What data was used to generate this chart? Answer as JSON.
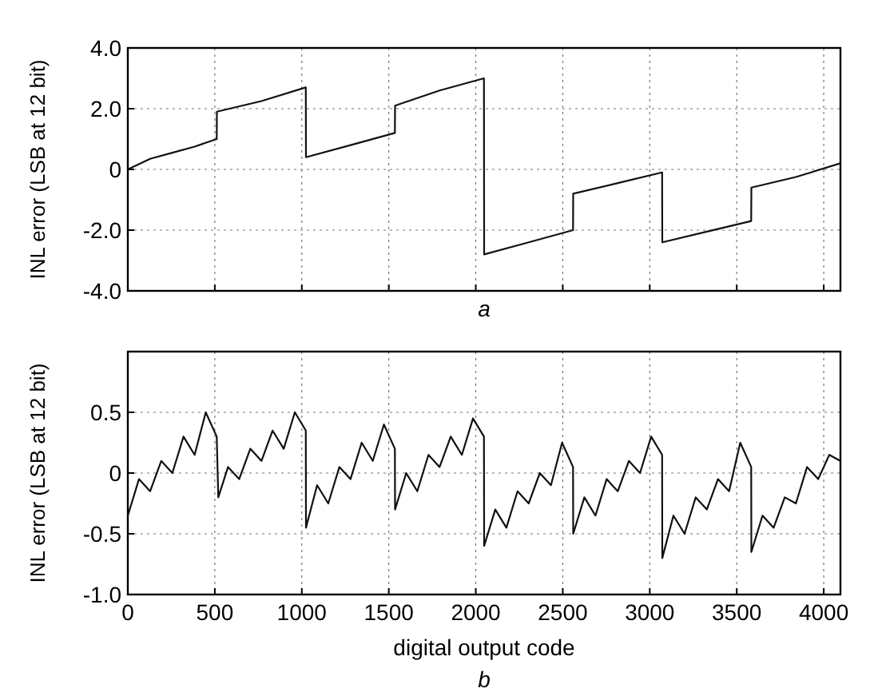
{
  "chart_data": [
    {
      "type": "line",
      "ylabel": "INL error (LSB at 12 bit)",
      "annotations": [
        "a"
      ],
      "x": [
        0,
        128,
        256,
        384,
        511,
        512,
        768,
        1023,
        1024,
        1280,
        1535,
        1536,
        1792,
        2047,
        2048,
        2304,
        2559,
        2560,
        2816,
        3071,
        3072,
        3328,
        3583,
        3584,
        3840,
        4095
      ],
      "series": [
        {
          "color": "#111111",
          "values": [
            0.0,
            0.35,
            0.55,
            0.75,
            1.0,
            1.9,
            2.25,
            2.7,
            0.4,
            0.8,
            1.2,
            2.1,
            2.6,
            3.0,
            -2.8,
            -2.4,
            -2.0,
            -0.8,
            -0.45,
            -0.1,
            -2.4,
            -2.05,
            -1.7,
            -0.6,
            -0.25,
            0.2
          ]
        }
      ],
      "xlim": [
        0,
        4096
      ],
      "xticks": [
        0,
        500,
        1000,
        1500,
        2000,
        2500,
        3000,
        3500,
        4000
      ],
      "ylim": [
        -4,
        4
      ],
      "yticks": [
        {
          "value": -4,
          "label": "-4.0"
        },
        {
          "value": -2,
          "label": "-2.0"
        },
        0,
        {
          "value": 2,
          "label": "2.0"
        },
        {
          "value": 4,
          "label": "4.0"
        }
      ],
      "tick_labels": "y",
      "grid": true,
      "marker": "none",
      "line_style": "solid"
    },
    {
      "type": "line",
      "ylabel": "INL error (LSB at 12 bit)",
      "xlabel": "digital output code",
      "annotations": [
        "b"
      ],
      "x": [
        0,
        64,
        128,
        192,
        256,
        320,
        384,
        448,
        511,
        520,
        576,
        640,
        704,
        768,
        832,
        896,
        960,
        1023,
        1024,
        1088,
        1152,
        1216,
        1280,
        1344,
        1408,
        1472,
        1535,
        1536,
        1600,
        1664,
        1728,
        1792,
        1856,
        1920,
        1984,
        2047,
        2048,
        2112,
        2176,
        2240,
        2304,
        2368,
        2432,
        2496,
        2559,
        2560,
        2624,
        2688,
        2752,
        2816,
        2880,
        2944,
        3008,
        3071,
        3072,
        3136,
        3200,
        3264,
        3328,
        3392,
        3456,
        3520,
        3583,
        3584,
        3648,
        3712,
        3776,
        3840,
        3904,
        3968,
        4032,
        4095
      ],
      "series": [
        {
          "color": "#111111",
          "values": [
            -0.35,
            -0.05,
            -0.15,
            0.1,
            0.0,
            0.3,
            0.15,
            0.5,
            0.3,
            -0.2,
            0.05,
            -0.05,
            0.2,
            0.1,
            0.35,
            0.2,
            0.5,
            0.35,
            -0.45,
            -0.1,
            -0.25,
            0.05,
            -0.05,
            0.25,
            0.1,
            0.4,
            0.2,
            -0.3,
            0.0,
            -0.15,
            0.15,
            0.05,
            0.3,
            0.15,
            0.45,
            0.3,
            -0.6,
            -0.3,
            -0.45,
            -0.15,
            -0.25,
            0.0,
            -0.1,
            0.25,
            0.05,
            -0.5,
            -0.2,
            -0.35,
            -0.05,
            -0.15,
            0.1,
            0.0,
            0.3,
            0.15,
            -0.7,
            -0.35,
            -0.5,
            -0.2,
            -0.3,
            -0.05,
            -0.15,
            0.25,
            0.05,
            -0.65,
            -0.35,
            -0.45,
            -0.2,
            -0.25,
            0.05,
            -0.05,
            0.15,
            0.1
          ]
        }
      ],
      "xlim": [
        0,
        4096
      ],
      "xticks": [
        0,
        500,
        1000,
        1500,
        2000,
        2500,
        3000,
        3500,
        4000
      ],
      "ylim": [
        -1,
        1
      ],
      "yticks": [
        {
          "value": -1,
          "label": "-1.0"
        },
        -0.5,
        0,
        0.5,
        {
          "value": 1,
          "label": null
        }
      ],
      "grid": true,
      "marker": "none",
      "line_style": "solid"
    }
  ]
}
